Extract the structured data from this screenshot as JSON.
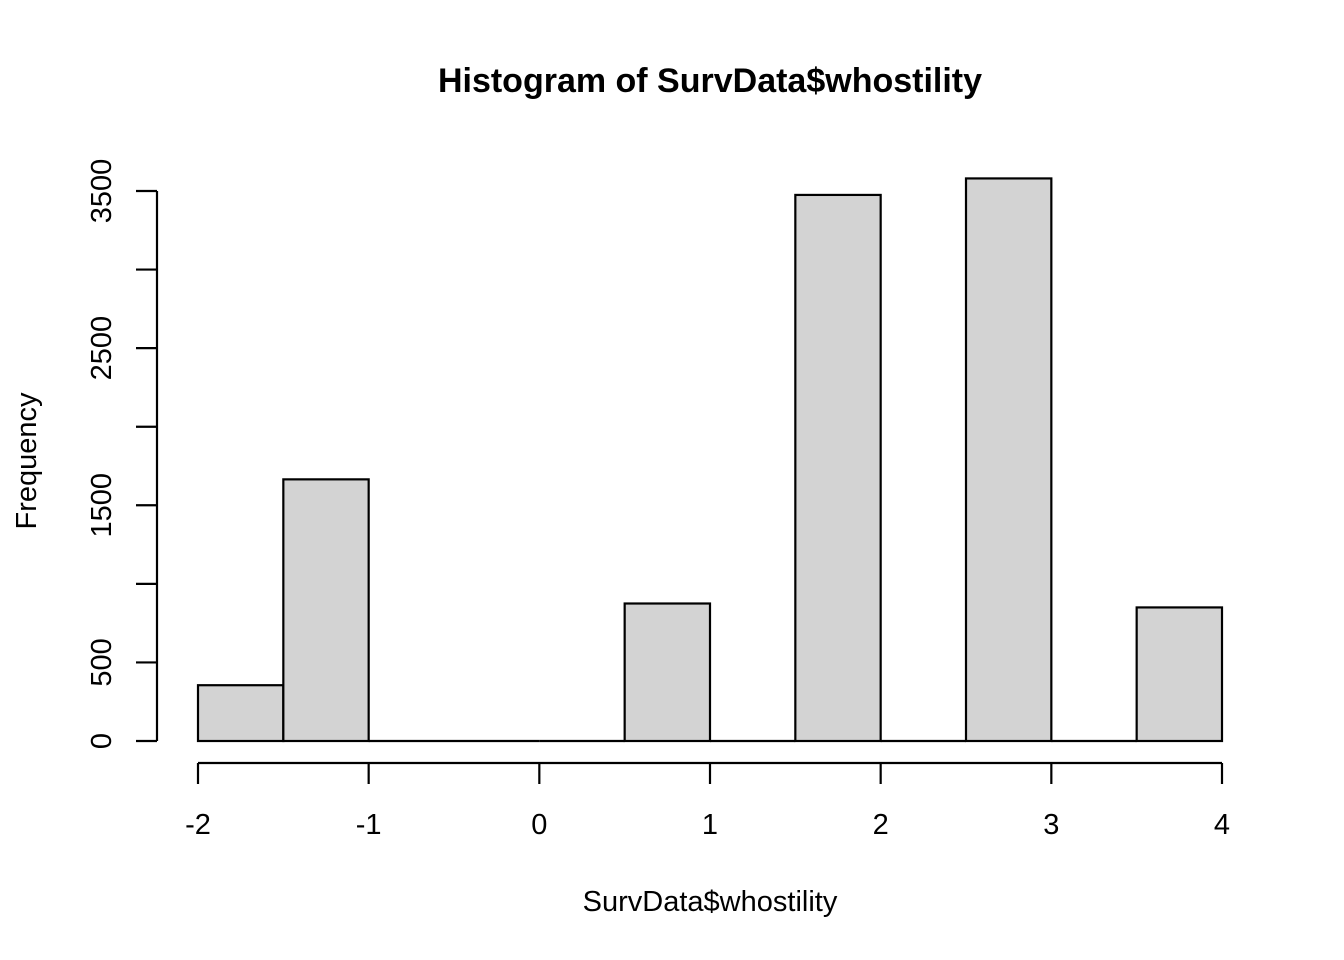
{
  "chart_data": {
    "type": "bar",
    "title": "Histogram of SurvData$whostility",
    "xlabel": "SurvData$whostility",
    "ylabel": "Frequency",
    "xlim": [
      -2,
      4
    ],
    "ylim": [
      0,
      3500
    ],
    "x_ticks": [
      -2,
      -1,
      0,
      1,
      2,
      3,
      4
    ],
    "x_tick_labels": [
      "-2",
      "-1",
      "0",
      "1",
      "2",
      "3",
      "4"
    ],
    "y_ticks": [
      0,
      500,
      1000,
      1500,
      2000,
      2500,
      3000,
      3500
    ],
    "y_tick_labels": [
      "0",
      "500",
      "",
      "1500",
      "",
      "2500",
      "",
      "3500"
    ],
    "bin_edges": [
      -2,
      -1.5,
      -1,
      -0.5,
      0,
      0.5,
      1,
      1.5,
      2,
      2.5,
      3,
      3.5,
      4
    ],
    "values": [
      355,
      1665,
      0,
      0,
      0,
      875,
      0,
      3475,
      0,
      3580,
      0,
      850
    ],
    "colors": {
      "bar_fill": "#d3d3d3",
      "bar_stroke": "#000000"
    },
    "grid": false
  }
}
